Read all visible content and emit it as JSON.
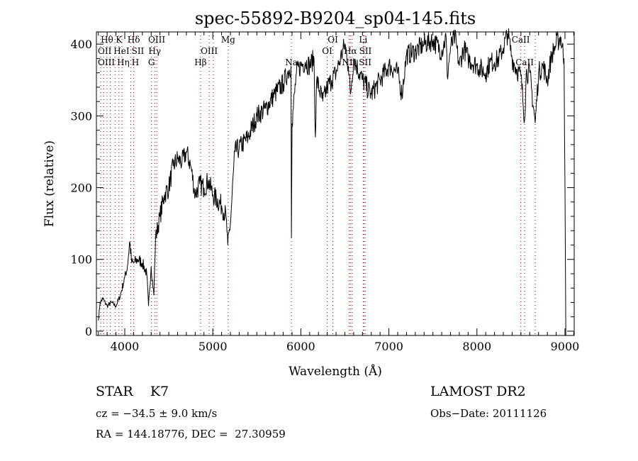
{
  "chart_data": {
    "type": "line",
    "title": "spec-55892-B9204_sp04-145.fits",
    "xlabel": "Wavelength (Å)",
    "ylabel": "Flux (relative)",
    "xlim": [
      3678,
      9105
    ],
    "ylim": [
      -6,
      417
    ],
    "xticks": [
      4000,
      5000,
      6000,
      7000,
      8000,
      9000
    ],
    "xtick_labels": [
      "4000",
      "5000",
      "6000",
      "7000",
      "8000",
      "9000"
    ],
    "yticks": [
      0,
      100,
      200,
      300,
      400
    ],
    "ytick_labels": [
      "0",
      "100",
      "200",
      "300",
      "400"
    ],
    "grid": false,
    "series": [
      {
        "name": "spectrum",
        "x": [
          3700,
          3720,
          3750,
          3800,
          3850,
          3900,
          3950,
          4000,
          4030,
          4056,
          4080,
          4100,
          4150,
          4200,
          4250,
          4270,
          4300,
          4330,
          4350,
          4400,
          4450,
          4500,
          4550,
          4600,
          4650,
          4700,
          4750,
          4800,
          4850,
          4900,
          4950,
          5000,
          5100,
          5150,
          5170,
          5200,
          5250,
          5300,
          5400,
          5500,
          5600,
          5700,
          5800,
          5850,
          5888,
          5893,
          5900,
          5950,
          6000,
          6050,
          6100,
          6150,
          6165,
          6180,
          6250,
          6300,
          6350,
          6400,
          6450,
          6500,
          6540,
          6563,
          6600,
          6700,
          6800,
          6900,
          7000,
          7100,
          7148,
          7200,
          7300,
          7400,
          7500,
          7600,
          7650,
          7663,
          7700,
          7750,
          7800,
          7850,
          7900,
          8000,
          8100,
          8150,
          8200,
          8250,
          8300,
          8350,
          8400,
          8450,
          8500,
          8542,
          8560,
          8600,
          8662,
          8700,
          8750,
          8800,
          8850,
          8900,
          8950,
          8990,
          9000
        ],
        "y": [
          15,
          40,
          45,
          35,
          40,
          35,
          50,
          75,
          90,
          125,
          95,
          95,
          100,
          95,
          80,
          35,
          90,
          50,
          130,
          160,
          190,
          200,
          230,
          240,
          235,
          250,
          230,
          190,
          205,
          200,
          210,
          190,
          175,
          160,
          120,
          150,
          250,
          255,
          270,
          300,
          310,
          330,
          345,
          360,
          370,
          130,
          290,
          360,
          370,
          375,
          370,
          380,
          270,
          350,
          320,
          340,
          350,
          360,
          380,
          400,
          370,
          330,
          380,
          350,
          330,
          350,
          370,
          360,
          330,
          385,
          390,
          400,
          405,
          390,
          410,
          355,
          395,
          410,
          370,
          395,
          380,
          370,
          360,
          375,
          375,
          380,
          395,
          415,
          380,
          365,
          355,
          295,
          360,
          360,
          290,
          360,
          370,
          350,
          385,
          400,
          410,
          380,
          200
        ]
      }
    ],
    "lines": [
      {
        "label": "Hθ",
        "wl": 3798,
        "row": 0
      },
      {
        "label": "K",
        "wl": 3934,
        "row": 0
      },
      {
        "label": "Hδ",
        "wl": 4102,
        "row": 0
      },
      {
        "label": "OIII",
        "wl": 4363,
        "row": 0
      },
      {
        "label": "Mg",
        "wl": 5175,
        "row": 0
      },
      {
        "label": "OI",
        "wl": 6364,
        "row": 0
      },
      {
        "label": "Li",
        "wl": 6708,
        "row": 0
      },
      {
        "label": "CaII",
        "wl": 8498,
        "row": 0
      },
      {
        "label": "OII",
        "wl": 3727,
        "row": 1
      },
      {
        "label": "HeI",
        "wl": 3889,
        "row": 1
      },
      {
        "label": "SII",
        "wl": 4068,
        "row": 1
      },
      {
        "label": "Hγ",
        "wl": 4340,
        "row": 1
      },
      {
        "label": "OIII",
        "wl": 4959,
        "row": 1
      },
      {
        "label": "OI",
        "wl": 6300,
        "row": 1
      },
      {
        "label": "Hα",
        "wl": 6563,
        "row": 1
      },
      {
        "label": "SII",
        "wl": 6716,
        "row": 1
      },
      {
        "label": "OIII",
        "wl": 3760,
        "row": 2
      },
      {
        "label": "Hη",
        "wl": 3835,
        "row": 2
      },
      {
        "label": "H",
        "wl": 3968,
        "row": 2
      },
      {
        "label": "G",
        "wl": 4304,
        "row": 2
      },
      {
        "label": "Hβ",
        "wl": 4861,
        "row": 2
      },
      {
        "label": "Na",
        "wl": 5893,
        "row": 2
      },
      {
        "label": "NII",
        "wl": 6548,
        "row": 2
      },
      {
        "label": "SII",
        "wl": 6731,
        "row": 2
      },
      {
        "label": "CaII",
        "wl": 8542,
        "row": 2
      },
      {
        "label": "",
        "wl": 5007,
        "row": -1
      },
      {
        "label": "",
        "wl": 6583,
        "row": -1
      },
      {
        "label": "",
        "wl": 8662,
        "row": -1
      }
    ],
    "colors": {
      "spectrum": "#000000",
      "line_markers": "#8b0000"
    }
  },
  "info": {
    "object_class": "STAR",
    "subclass": "K7",
    "redshift": "cz = −34.5 ± 9.0 km/s",
    "coords": "RA = 144.18776, DEC =  27.30959",
    "survey": "LAMOST DR2",
    "obs_date": "Obs−Date: 20111126"
  }
}
